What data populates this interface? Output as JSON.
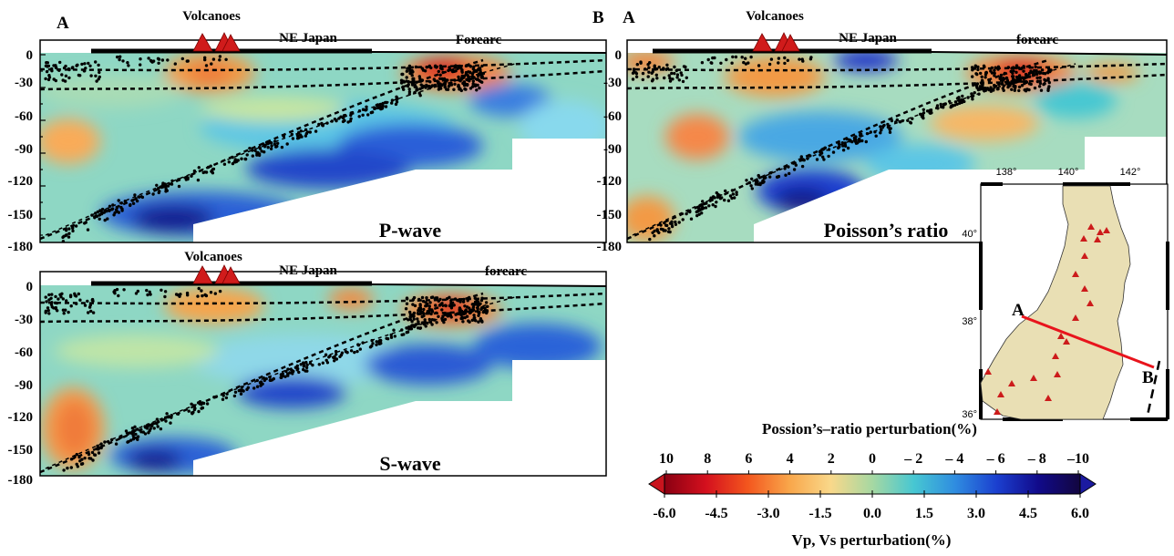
{
  "panels": [
    {
      "id": "p",
      "corner_left": "A",
      "corner_right": "B",
      "volcano_label": "Volcanoes",
      "region_label": "NE Japan",
      "forearc_label": "Forearc",
      "title": "P-wave",
      "y_ticks": [
        "0",
        "-30",
        "-60",
        "-90",
        "-120",
        "-150",
        "-180"
      ]
    },
    {
      "id": "poisson",
      "corner_left": "A",
      "corner_right": "",
      "volcano_label": "Volcanoes",
      "region_label": "NE Japan",
      "forearc_label": "forearc",
      "title": "Poisson’s ratio",
      "y_ticks": [
        "0",
        "-30",
        "-60",
        "-90",
        "-120",
        "-150",
        "-180"
      ]
    },
    {
      "id": "s",
      "corner_left": "",
      "corner_right": "",
      "volcano_label": "Volcanoes",
      "region_label": "NE Japan",
      "forearc_label": "forearc",
      "title": "S-wave",
      "y_ticks": [
        "0",
        "-30",
        "-60",
        "-90",
        "-120",
        "-150",
        "-180"
      ]
    }
  ],
  "map": {
    "lon_ticks": [
      "138°",
      "140°",
      "142°"
    ],
    "lat_ticks": [
      "40°",
      "38°",
      "36°"
    ],
    "profile_start": "A",
    "profile_end": "B",
    "profile_color": "#e8141c",
    "land_color": "#e9dfb4",
    "volcano_color": "#cc1b1b"
  },
  "colorbar": {
    "top_title": "Possion’s–ratio perturbation(%)",
    "top_ticks": [
      "10",
      "8",
      "6",
      "4",
      "2",
      "0",
      "– 2",
      "– 4",
      "– 6",
      "– 8",
      "–10"
    ],
    "bottom_ticks": [
      "-6.0",
      "-4.5",
      "-3.0",
      "-1.5",
      "0.0",
      "1.5",
      "3.0",
      "4.5",
      "6.0"
    ],
    "bottom_title": "Vp, Vs perturbation(%)",
    "colors": [
      "#8a0012",
      "#d4101e",
      "#f3561e",
      "#f9a64a",
      "#f9d88a",
      "#a6d8a2",
      "#47c7d2",
      "#2f8ce0",
      "#1b3fcf",
      "#110a8a",
      "#12063f"
    ]
  }
}
